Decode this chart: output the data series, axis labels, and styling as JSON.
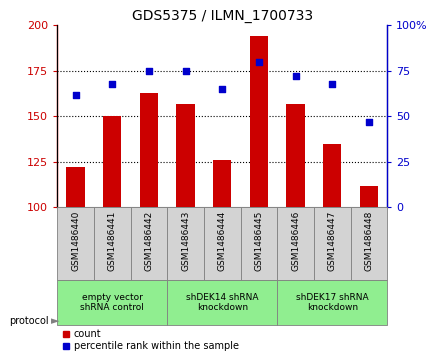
{
  "title": "GDS5375 / ILMN_1700733",
  "samples": [
    "GSM1486440",
    "GSM1486441",
    "GSM1486442",
    "GSM1486443",
    "GSM1486444",
    "GSM1486445",
    "GSM1486446",
    "GSM1486447",
    "GSM1486448"
  ],
  "counts": [
    122,
    150,
    163,
    157,
    126,
    194,
    157,
    135,
    112
  ],
  "percentiles": [
    62,
    68,
    75,
    75,
    65,
    80,
    72,
    68,
    47
  ],
  "ylim_left": [
    100,
    200
  ],
  "ylim_right": [
    0,
    100
  ],
  "yticks_left": [
    100,
    125,
    150,
    175,
    200
  ],
  "yticks_right": [
    0,
    25,
    50,
    75,
    100
  ],
  "bar_color": "#cc0000",
  "dot_color": "#0000cc",
  "groups": [
    {
      "label": "empty vector\nshRNA control",
      "start": 0,
      "end": 3,
      "color": "#90ee90"
    },
    {
      "label": "shDEK14 shRNA\nknockdown",
      "start": 3,
      "end": 6,
      "color": "#90ee90"
    },
    {
      "label": "shDEK17 shRNA\nknockdown",
      "start": 6,
      "end": 9,
      "color": "#90ee90"
    }
  ],
  "legend_count_label": "count",
  "legend_percentile_label": "percentile rank within the sample",
  "protocol_label": "protocol",
  "xlabel_area_color": "#d3d3d3",
  "group_area_color": "#90ee90",
  "background_color": "#ffffff",
  "gridline_values": [
    125,
    150,
    175
  ],
  "bar_width": 0.5
}
